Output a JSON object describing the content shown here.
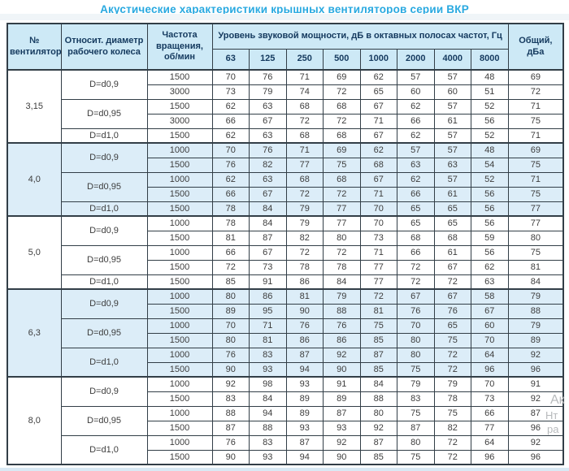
{
  "title": "Акустические характеристики крышных вентиляторов серии ВКР",
  "colors": {
    "title": "#29a9e0",
    "header_bg": "#cde9f6",
    "header_text": "#14395e",
    "shaded_row_bg": "#dcedf8",
    "border": "#323e47",
    "cell_text": "#3d3d3d"
  },
  "table": {
    "headers": {
      "fan_no": "№ вентилятора",
      "diameter": "Относит. диаметр рабочего колеса",
      "speed": "Частота вращения, об/мин",
      "spl_group": "Уровень звуковой мощности, дБ в октавных полосах частот, Гц",
      "freqs": [
        "63",
        "125",
        "250",
        "500",
        "1000",
        "2000",
        "4000",
        "8000"
      ],
      "total": "Общий, дБа"
    },
    "groups": [
      {
        "fan": "3,15",
        "shaded": false,
        "subgroups": [
          {
            "diameter": "D=d0,9",
            "rows": [
              {
                "speed": "1500",
                "values": [
                  70,
                  76,
                  71,
                  69,
                  62,
                  57,
                  57,
                  48
                ],
                "total": 69
              },
              {
                "speed": "3000",
                "values": [
                  73,
                  79,
                  74,
                  72,
                  65,
                  60,
                  60,
                  51
                ],
                "total": 72
              }
            ]
          },
          {
            "diameter": "D=d0,95",
            "rows": [
              {
                "speed": "1500",
                "values": [
                  62,
                  63,
                  68,
                  68,
                  67,
                  62,
                  57,
                  52
                ],
                "total": 71
              },
              {
                "speed": "3000",
                "values": [
                  66,
                  67,
                  72,
                  72,
                  71,
                  66,
                  61,
                  56
                ],
                "total": 75
              }
            ]
          },
          {
            "diameter": "D=d1,0",
            "rows": [
              {
                "speed": "1500",
                "values": [
                  62,
                  63,
                  68,
                  68,
                  67,
                  62,
                  57,
                  52
                ],
                "total": 71
              }
            ]
          }
        ]
      },
      {
        "fan": "4,0",
        "shaded": true,
        "subgroups": [
          {
            "diameter": "D=d0,9",
            "rows": [
              {
                "speed": "1000",
                "values": [
                  70,
                  76,
                  71,
                  69,
                  62,
                  57,
                  57,
                  48
                ],
                "total": 69
              },
              {
                "speed": "1500",
                "values": [
                  76,
                  82,
                  77,
                  75,
                  68,
                  63,
                  63,
                  54
                ],
                "total": 75
              }
            ]
          },
          {
            "diameter": "D=d0,95",
            "rows": [
              {
                "speed": "1000",
                "values": [
                  62,
                  63,
                  68,
                  68,
                  67,
                  62,
                  57,
                  52
                ],
                "total": 71
              },
              {
                "speed": "1500",
                "values": [
                  66,
                  67,
                  72,
                  72,
                  71,
                  66,
                  61,
                  56
                ],
                "total": 75
              }
            ]
          },
          {
            "diameter": "D=d1,0",
            "rows": [
              {
                "speed": "1500",
                "values": [
                  78,
                  84,
                  79,
                  77,
                  70,
                  65,
                  65,
                  56
                ],
                "total": 77
              }
            ]
          }
        ]
      },
      {
        "fan": "5,0",
        "shaded": false,
        "subgroups": [
          {
            "diameter": "D=d0,9",
            "rows": [
              {
                "speed": "1000",
                "values": [
                  78,
                  84,
                  79,
                  77,
                  70,
                  65,
                  65,
                  56
                ],
                "total": 77
              },
              {
                "speed": "1500",
                "values": [
                  81,
                  87,
                  82,
                  80,
                  73,
                  68,
                  68,
                  59
                ],
                "total": 80
              }
            ]
          },
          {
            "diameter": "D=d0,95",
            "rows": [
              {
                "speed": "1000",
                "values": [
                  66,
                  67,
                  72,
                  72,
                  71,
                  66,
                  61,
                  56
                ],
                "total": 75
              },
              {
                "speed": "1500",
                "values": [
                  72,
                  73,
                  78,
                  78,
                  77,
                  72,
                  67,
                  62
                ],
                "total": 81
              }
            ]
          },
          {
            "diameter": "D=d1,0",
            "rows": [
              {
                "speed": "1500",
                "values": [
                  85,
                  91,
                  86,
                  84,
                  77,
                  72,
                  72,
                  63
                ],
                "total": 84
              }
            ]
          }
        ]
      },
      {
        "fan": "6,3",
        "shaded": true,
        "subgroups": [
          {
            "diameter": "D=d0,9",
            "rows": [
              {
                "speed": "1000",
                "values": [
                  80,
                  86,
                  81,
                  79,
                  72,
                  67,
                  67,
                  58
                ],
                "total": 79
              },
              {
                "speed": "1500",
                "values": [
                  89,
                  95,
                  90,
                  88,
                  81,
                  76,
                  76,
                  67
                ],
                "total": 88
              }
            ]
          },
          {
            "diameter": "D=d0,95",
            "rows": [
              {
                "speed": "1000",
                "values": [
                  70,
                  71,
                  76,
                  76,
                  75,
                  70,
                  65,
                  60
                ],
                "total": 79
              },
              {
                "speed": "1500",
                "values": [
                  80,
                  81,
                  86,
                  86,
                  85,
                  80,
                  75,
                  70
                ],
                "total": 89
              }
            ]
          },
          {
            "diameter": "D=d1,0",
            "rows": [
              {
                "speed": "1000",
                "values": [
                  76,
                  83,
                  87,
                  92,
                  87,
                  80,
                  72,
                  64
                ],
                "total": 92
              },
              {
                "speed": "1500",
                "values": [
                  90,
                  93,
                  94,
                  90,
                  85,
                  75,
                  72,
                  96
                ],
                "total": 96
              }
            ]
          }
        ]
      },
      {
        "fan": "8,0",
        "shaded": false,
        "subgroups": [
          {
            "diameter": "D=d0,9",
            "rows": [
              {
                "speed": "1000",
                "values": [
                  92,
                  98,
                  93,
                  91,
                  84,
                  79,
                  79,
                  70
                ],
                "total": 91
              },
              {
                "speed": "1500",
                "values": [
                  83,
                  84,
                  89,
                  89,
                  88,
                  83,
                  78,
                  73
                ],
                "total": 92
              }
            ]
          },
          {
            "diameter": "D=d0,95",
            "rows": [
              {
                "speed": "1000",
                "values": [
                  88,
                  94,
                  89,
                  87,
                  80,
                  75,
                  75,
                  66
                ],
                "total": 87
              },
              {
                "speed": "1500",
                "values": [
                  87,
                  88,
                  93,
                  93,
                  92,
                  87,
                  82,
                  77
                ],
                "total": 96
              }
            ]
          },
          {
            "diameter": "D=d1,0",
            "rows": [
              {
                "speed": "1000",
                "values": [
                  76,
                  83,
                  87,
                  92,
                  87,
                  80,
                  72,
                  64
                ],
                "total": 92
              },
              {
                "speed": "1500",
                "values": [
                  90,
                  93,
                  94,
                  90,
                  85,
                  75,
                  72,
                  96
                ],
                "total": 96
              }
            ]
          }
        ]
      }
    ]
  },
  "watermark": [
    "Ак",
    "Нт",
    "ра"
  ]
}
